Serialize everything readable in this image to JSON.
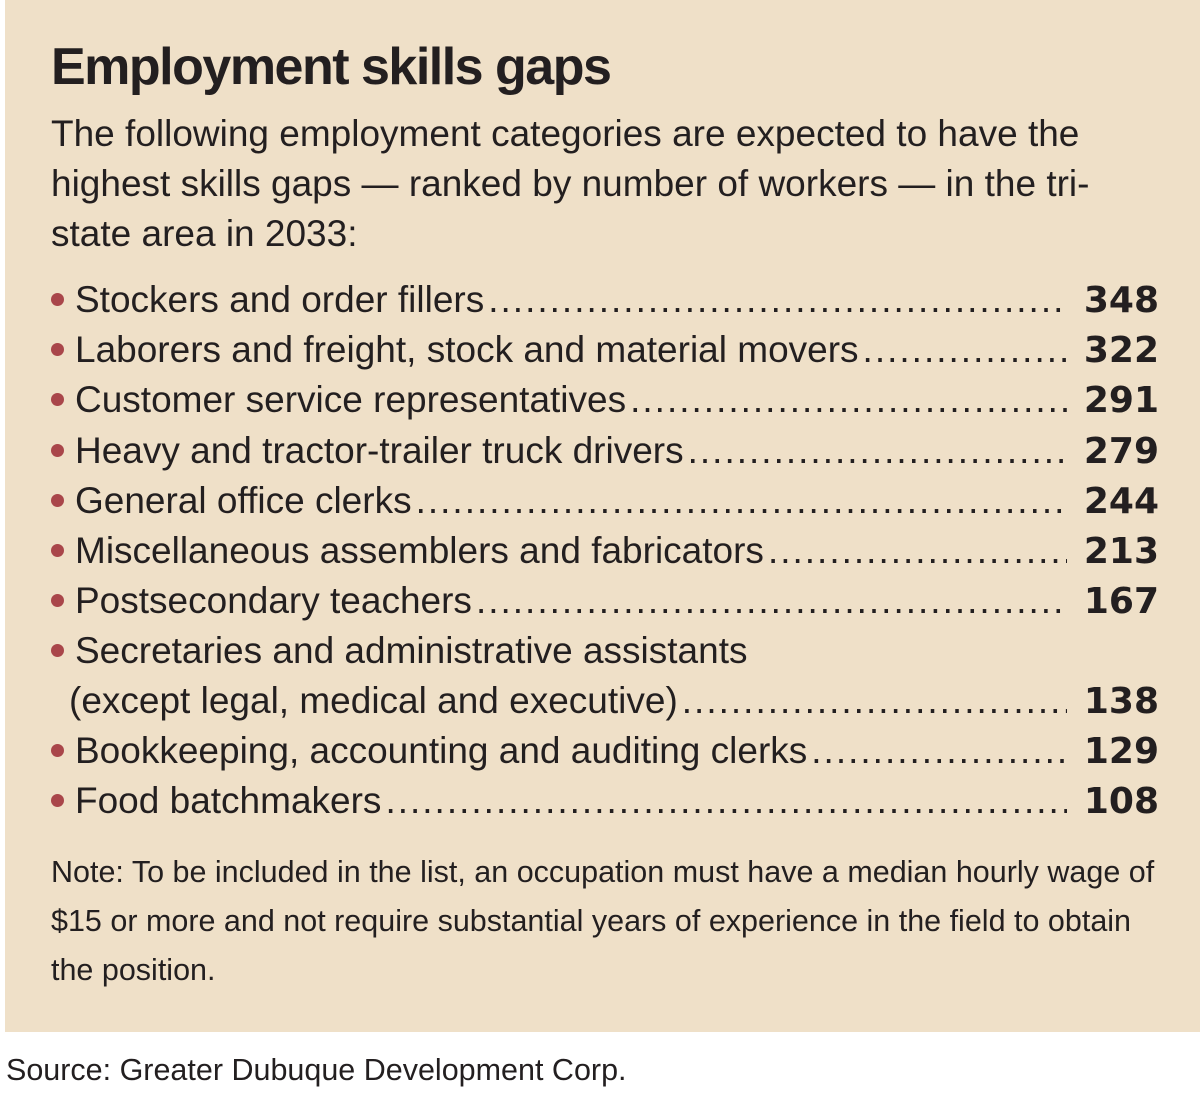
{
  "title": "Employment skills gaps",
  "intro": "The following employment categories are expected to have the highest skills gaps — ranked by number of workers — in the tri-state area in 2033:",
  "items": [
    {
      "label": "Stockers and order fillers",
      "value": "348"
    },
    {
      "label": "Laborers and freight, stock and material movers",
      "value": "322"
    },
    {
      "label": "Customer service representatives",
      "value": "291"
    },
    {
      "label": "Heavy and tractor-trailer truck drivers",
      "value": "279"
    },
    {
      "label": "General office clerks",
      "value": "244"
    },
    {
      "label": "Miscellaneous assemblers and fabricators",
      "value": "213"
    },
    {
      "label": "Postsecondary teachers",
      "value": "167"
    },
    {
      "label_line1": "Secretaries and administrative assistants",
      "label": "(except legal, medical and executive)",
      "value": "138"
    },
    {
      "label": "Bookkeeping, accounting and auditing clerks",
      "value": "129"
    },
    {
      "label": "Food batchmakers",
      "value": "108"
    }
  ],
  "note": "Note: To be included in the list, an occupation must have a median hourly wage of $15 or more and not require substantial years of experience in the field to obtain the position.",
  "source": "Source: Greater Dubuque Development Corp.",
  "colors": {
    "panel_background": "#efe0c8",
    "bullet": "#a9464a",
    "text": "#231f20"
  }
}
